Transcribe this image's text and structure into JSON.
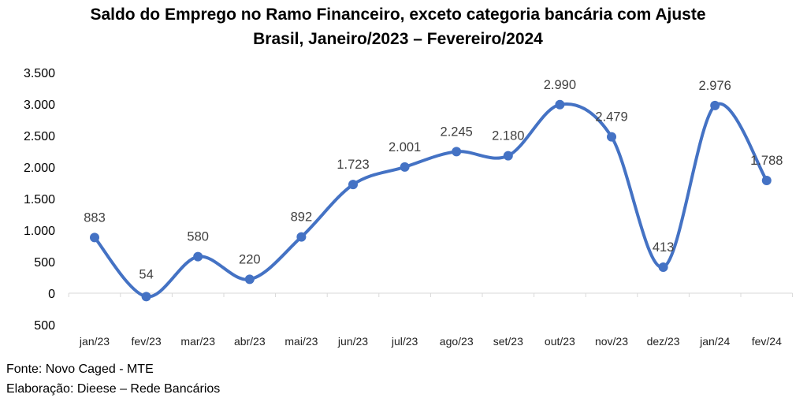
{
  "chart_data": {
    "type": "line",
    "title": "Saldo do Emprego no Ramo Financeiro, exceto categoria bancária com Ajuste",
    "subtitle": "Brasil,  Janeiro/2023 – Fevereiro/2024",
    "categories": [
      "jan/23",
      "fev/23",
      "mar/23",
      "abr/23",
      "mai/23",
      "jun/23",
      "jul/23",
      "ago/23",
      "set/23",
      "out/23",
      "nov/23",
      "dez/23",
      "jan/24",
      "fev/24"
    ],
    "values": [
      883,
      -54,
      580,
      220,
      892,
      1723,
      2001,
      2245,
      2180,
      2990,
      2479,
      413,
      2976,
      1788
    ],
    "data_labels": [
      "883",
      "54",
      "580",
      "220",
      "892",
      "1.723",
      "2.001",
      "2.245",
      "2.180",
      "2.990",
      "2.479",
      "413",
      "2.976",
      "1.788"
    ],
    "y_ticks": [
      3500,
      3000,
      2500,
      2000,
      1500,
      1000,
      500,
      0,
      -500
    ],
    "y_tick_labels": [
      "3.500",
      "3.000",
      "2.500",
      "2.000",
      "1.500",
      "1.000",
      "500",
      "0",
      "500"
    ],
    "ylim": [
      -500,
      3500
    ],
    "grid": false,
    "line_color": "#4472C4",
    "negative_color": "#FF0000",
    "label_color": "#404040"
  },
  "footer": {
    "source": "Fonte: Novo Caged - MTE",
    "credit": "Elaboração: Dieese – Rede Bancários"
  }
}
